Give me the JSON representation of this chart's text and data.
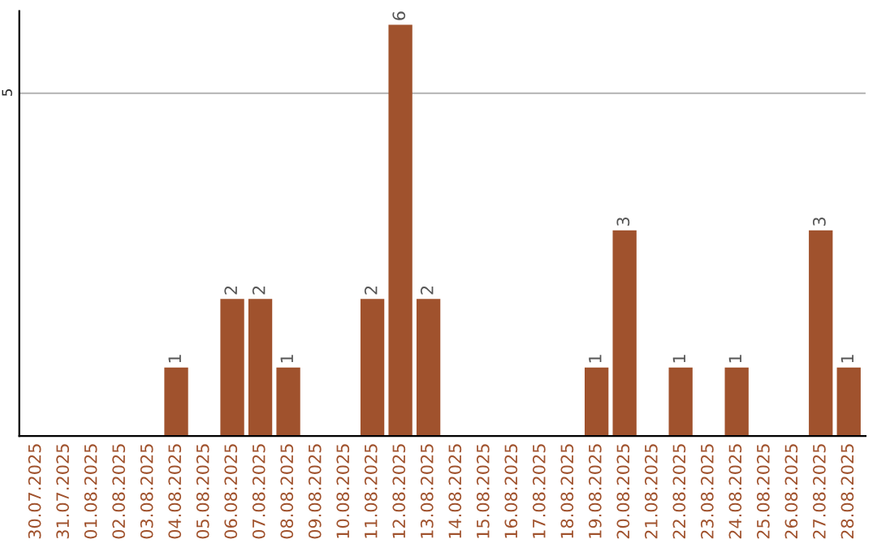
{
  "chart_data": {
    "type": "bar",
    "categories": [
      "30.07.2025",
      "31.07.2025",
      "01.08.2025",
      "02.08.2025",
      "03.08.2025",
      "04.08.2025",
      "05.08.2025",
      "06.08.2025",
      "07.08.2025",
      "08.08.2025",
      "09.08.2025",
      "10.08.2025",
      "11.08.2025",
      "12.08.2025",
      "13.08.2025",
      "14.08.2025",
      "15.08.2025",
      "16.08.2025",
      "17.08.2025",
      "18.08.2025",
      "19.08.2025",
      "20.08.2025",
      "21.08.2025",
      "22.08.2025",
      "23.08.2025",
      "24.08.2025",
      "25.08.2025",
      "26.08.2025",
      "27.08.2025",
      "28.08.2025"
    ],
    "values": [
      0,
      0,
      0,
      0,
      0,
      1,
      0,
      2,
      2,
      1,
      0,
      0,
      2,
      6,
      2,
      0,
      0,
      0,
      0,
      0,
      1,
      3,
      0,
      1,
      0,
      1,
      0,
      0,
      3,
      1
    ],
    "value_labels": [
      null,
      null,
      null,
      null,
      null,
      "1",
      null,
      "2",
      "2",
      "1",
      null,
      null,
      "2",
      "6",
      "2",
      null,
      null,
      null,
      null,
      null,
      "1",
      "3",
      null,
      "1",
      null,
      "1",
      null,
      null,
      "3",
      "1"
    ],
    "color": "#a0522d",
    "ylim": [
      0,
      6.2
    ],
    "yticks": [
      5
    ],
    "grid": "y",
    "legend": false
  }
}
